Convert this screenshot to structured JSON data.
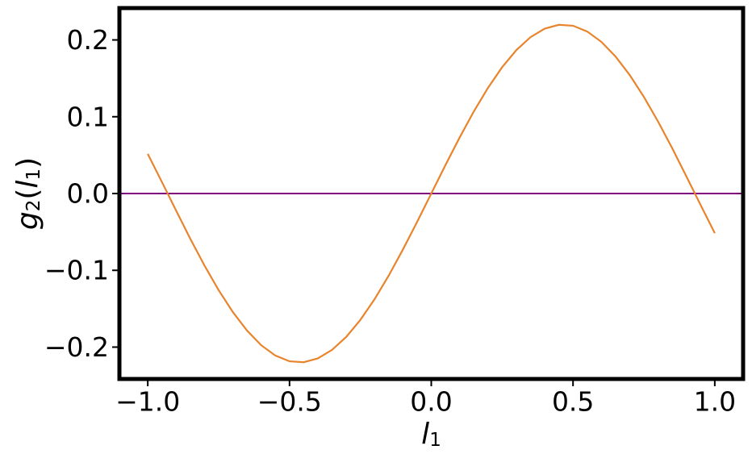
{
  "chart_data": {
    "type": "line",
    "xlabel": [
      "l",
      "1"
    ],
    "ylabel": [
      "g",
      "2",
      "(",
      "l",
      "1",
      ")"
    ],
    "x": [
      -1.0,
      -0.95,
      -0.9,
      -0.85,
      -0.8,
      -0.75,
      -0.7,
      -0.65,
      -0.6,
      -0.55,
      -0.5,
      -0.45,
      -0.4,
      -0.35,
      -0.3,
      -0.25,
      -0.2,
      -0.15,
      -0.1,
      -0.05,
      0.0,
      0.05,
      0.1,
      0.15,
      0.2,
      0.25,
      0.3,
      0.35,
      0.4,
      0.45,
      0.5,
      0.55,
      0.6,
      0.65,
      0.7,
      0.75,
      0.8,
      0.85,
      0.9,
      0.95,
      1.0
    ],
    "series": [
      {
        "color": "#e8842c",
        "values": [
          0.0516,
          0.0149,
          -0.0222,
          -0.0589,
          -0.0937,
          -0.1258,
          -0.1543,
          -0.1784,
          -0.1975,
          -0.211,
          -0.2185,
          -0.2197,
          -0.2147,
          -0.2036,
          -0.1867,
          -0.1645,
          -0.1376,
          -0.1068,
          -0.0729,
          -0.037,
          0.0,
          0.037,
          0.0729,
          0.1068,
          0.1376,
          0.1645,
          0.1867,
          0.2036,
          0.2147,
          0.2197,
          0.2185,
          0.211,
          0.1975,
          0.1784,
          0.1543,
          0.1258,
          0.0937,
          0.0589,
          0.0222,
          -0.0149,
          -0.0516
        ]
      }
    ],
    "hline": {
      "value": 0,
      "color": "#800080"
    },
    "xlim": [
      -1.1,
      1.1
    ],
    "ylim": [
      -0.2415,
      0.2415
    ],
    "xticks": [
      {
        "value": -1.0,
        "label": "−1.0"
      },
      {
        "value": -0.5,
        "label": "−0.5"
      },
      {
        "value": 0.0,
        "label": "0.0"
      },
      {
        "value": 0.5,
        "label": "0.5"
      },
      {
        "value": 1.0,
        "label": "1.0"
      }
    ],
    "yticks": [
      {
        "value": -0.2,
        "label": "−0.2"
      },
      {
        "value": -0.1,
        "label": "−0.1"
      },
      {
        "value": 0.0,
        "label": "0.0"
      },
      {
        "value": 0.1,
        "label": "0.1"
      },
      {
        "value": 0.2,
        "label": "0.2"
      }
    ]
  }
}
